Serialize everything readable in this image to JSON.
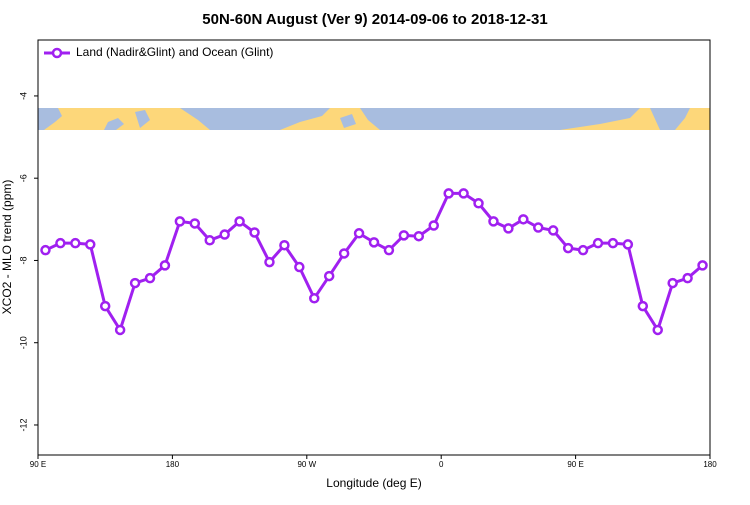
{
  "chart_data": {
    "type": "line",
    "title": "50N-60N August (Ver 9)   2014-09-06 to 2018-12-31",
    "x_label": "Longitude (deg E)",
    "y_label": "XCO2 - MLO trend (ppm)",
    "x": [
      95,
      105,
      115,
      125,
      135,
      145,
      155,
      165,
      175,
      185,
      195,
      205,
      215,
      225,
      235,
      245,
      255,
      265,
      275,
      285,
      295,
      305,
      315,
      325,
      335,
      345,
      355,
      365,
      375,
      385,
      395,
      405,
      415,
      425,
      435,
      445,
      455,
      465,
      475,
      485,
      495,
      505,
      515,
      525,
      535
    ],
    "series": [
      {
        "name": "Land (Nadir&Glint) and Ocean (Glint)",
        "color": "#a020f0",
        "values": [
          -7.75,
          -7.58,
          -7.58,
          -7.61,
          -9.11,
          -9.69,
          -8.55,
          -8.43,
          -8.12,
          -7.05,
          -7.1,
          -7.51,
          -7.37,
          -7.05,
          -7.32,
          -8.04,
          -7.63,
          -8.16,
          -8.92,
          -8.38,
          -7.83,
          -7.34,
          -7.56,
          -7.75,
          -7.39,
          -7.41,
          -7.15,
          -6.37,
          -6.37,
          -6.61,
          -7.05,
          -7.22,
          -7.0,
          -7.2,
          -7.27,
          -7.7,
          -7.75,
          -7.58,
          -7.58,
          -7.61,
          -9.11,
          -9.69,
          -8.55,
          -8.43,
          -8.12
        ]
      }
    ],
    "xlim": [
      90,
      540
    ],
    "xticks": [
      {
        "value": 90,
        "label": "90 E"
      },
      {
        "value": 180,
        "label": "180"
      },
      {
        "value": 270,
        "label": "90 W"
      },
      {
        "value": 360,
        "label": "0"
      },
      {
        "value": 450,
        "label": "90 E"
      },
      {
        "value": 540,
        "label": "180"
      }
    ],
    "ylim": [
      -12.73,
      -2.64
    ],
    "yticks": [
      -12,
      -10,
      -8,
      -6,
      -4
    ],
    "legend": "top-left"
  }
}
